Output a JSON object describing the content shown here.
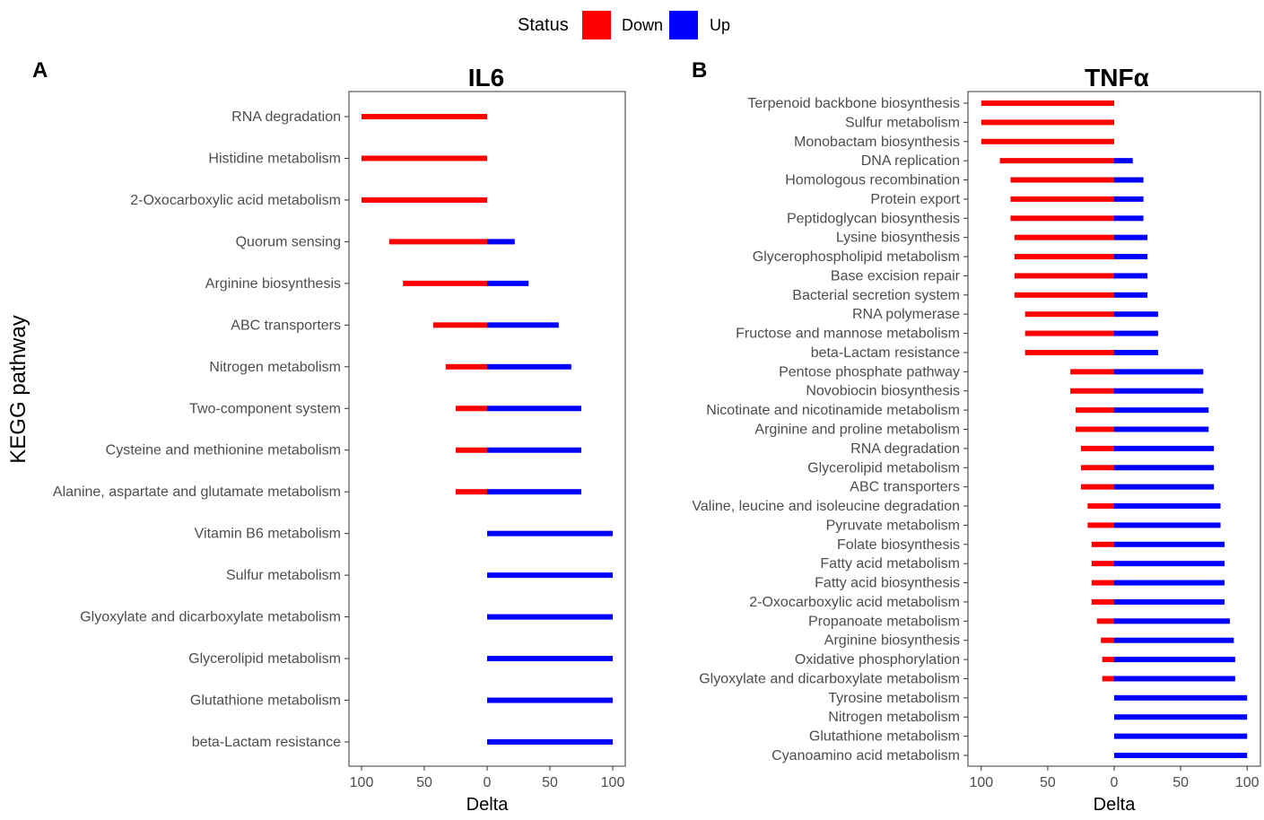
{
  "legend": {
    "title": "Status",
    "items": [
      {
        "name": "Down",
        "color": "#ff0000"
      },
      {
        "name": "Up",
        "color": "#0000ff"
      }
    ]
  },
  "y_axis_label": "KEGG pathway",
  "chart_data": [
    {
      "type": "bar",
      "panel_label": "A",
      "title": "IL6",
      "xlabel": "Delta",
      "ylabel": "KEGG pathway",
      "xlim": [
        -110,
        110
      ],
      "xticks": [
        -100,
        -50,
        0,
        50,
        100
      ],
      "xtick_labels": [
        "100",
        "50",
        "0",
        "50",
        "100"
      ],
      "categories": [
        "RNA degradation",
        "Histidine metabolism",
        "2-Oxocarboxylic acid metabolism",
        "Quorum sensing",
        "Arginine biosynthesis",
        "ABC transporters",
        "Nitrogen metabolism",
        "Two-component system",
        "Cysteine and methionine metabolism",
        "Alanine, aspartate and glutamate metabolism",
        "Vitamin B6 metabolism",
        "Sulfur metabolism",
        "Glyoxylate and dicarboxylate metabolism",
        "Glycerolipid metabolism",
        "Glutathione metabolism",
        "beta-Lactam resistance"
      ],
      "series": [
        {
          "name": "Down",
          "color": "#ff0000",
          "values": [
            -100,
            -100,
            -100,
            -78,
            -67,
            -43,
            -33,
            -25,
            -25,
            -25,
            0,
            0,
            0,
            0,
            0,
            0
          ]
        },
        {
          "name": "Up",
          "color": "#0000ff",
          "values": [
            0,
            0,
            0,
            22,
            33,
            57,
            67,
            75,
            75,
            75,
            100,
            100,
            100,
            100,
            100,
            100
          ]
        }
      ]
    },
    {
      "type": "bar",
      "panel_label": "B",
      "title": "TNFα",
      "xlabel": "Delta",
      "ylabel": "",
      "xlim": [
        -110,
        110
      ],
      "xticks": [
        -100,
        -50,
        0,
        50,
        100
      ],
      "xtick_labels": [
        "100",
        "50",
        "0",
        "50",
        "100"
      ],
      "categories": [
        "Terpenoid backbone biosynthesis",
        "Sulfur metabolism",
        "Monobactam biosynthesis",
        "DNA replication",
        "Homologous recombination",
        "Protein export",
        "Peptidoglycan biosynthesis",
        "Lysine biosynthesis",
        "Glycerophospholipid metabolism",
        "Base excision repair",
        "Bacterial secretion system",
        "RNA polymerase",
        "Fructose and mannose metabolism",
        "beta-Lactam resistance",
        "Pentose phosphate pathway",
        "Novobiocin biosynthesis",
        "Nicotinate and nicotinamide metabolism",
        "Arginine and proline metabolism",
        "RNA degradation",
        "Glycerolipid metabolism",
        "ABC transporters",
        "Valine, leucine and isoleucine degradation",
        "Pyruvate metabolism",
        "Folate biosynthesis",
        "Fatty acid metabolism",
        "Fatty acid biosynthesis",
        "2-Oxocarboxylic acid metabolism",
        "Propanoate metabolism",
        "Arginine biosynthesis",
        "Oxidative phosphorylation",
        "Glyoxylate and dicarboxylate metabolism",
        "Tyrosine metabolism",
        "Nitrogen metabolism",
        "Glutathione metabolism",
        "Cyanoamino acid metabolism"
      ],
      "series": [
        {
          "name": "Down",
          "color": "#ff0000",
          "values": [
            -100,
            -100,
            -100,
            -86,
            -78,
            -78,
            -78,
            -75,
            -75,
            -75,
            -75,
            -67,
            -67,
            -67,
            -33,
            -33,
            -29,
            -29,
            -25,
            -25,
            -25,
            -20,
            -20,
            -17,
            -17,
            -17,
            -17,
            -13,
            -10,
            -9,
            -9,
            0,
            0,
            0,
            0
          ]
        },
        {
          "name": "Up",
          "color": "#0000ff",
          "values": [
            0,
            0,
            0,
            14,
            22,
            22,
            22,
            25,
            25,
            25,
            25,
            33,
            33,
            33,
            67,
            67,
            71,
            71,
            75,
            75,
            75,
            80,
            80,
            83,
            83,
            83,
            83,
            87,
            90,
            91,
            91,
            100,
            100,
            100,
            100
          ]
        }
      ]
    }
  ]
}
